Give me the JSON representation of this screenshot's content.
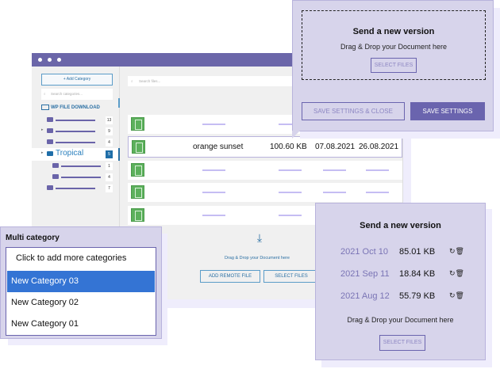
{
  "window": {
    "sidebar": {
      "add_category": "+ Add Category",
      "search_placeholder": "Search categories...",
      "brand": "WP FILE DOWNLOAD",
      "tree": [
        {
          "count": "13"
        },
        {
          "count": "9"
        },
        {
          "count": "4"
        },
        {
          "label": "Tropical",
          "count": "5"
        },
        {
          "count": "1"
        },
        {
          "count": "4"
        },
        {
          "count": "7"
        }
      ]
    },
    "main": {
      "search_placeholder": "Search files...",
      "headers": {
        "ext": "EXT",
        "title": "TITLE",
        "size": "FILE SIZE"
      },
      "selected_row": {
        "title": "orange sunset",
        "size": "100.60 KB",
        "date_added": "07.08.2021",
        "date_modified": "26.08.2021"
      },
      "drop_text": "Drag & Drop your Document here",
      "add_remote": "ADD REMOTE FILE",
      "select_files": "SELECT FILES"
    }
  },
  "top_popup": {
    "title": "Send a new version",
    "drop_text": "Drag & Drop your Document here",
    "select_files": "SELECT FILES",
    "save_close": "SAVE SETTINGS & CLOSE",
    "save": "SAVE SETTINGS"
  },
  "version_popup": {
    "title": "Send a new version",
    "versions": [
      {
        "date": "2021 Oct 10",
        "size": "85.01 KB"
      },
      {
        "date": "2021 Sep 11",
        "size": "18.84 KB"
      },
      {
        "date": "2021 Aug 12",
        "size": "55.79 KB"
      }
    ],
    "drop_text": "Drag & Drop your Document here",
    "select_files": "SELECT FILES"
  },
  "multi_category": {
    "label": "Multi category",
    "placeholder": "Click to add more categories",
    "options": [
      "New Category 03",
      "New Category 02",
      "New Category 01"
    ],
    "selected": "New Category 03"
  },
  "colors": {
    "accent": "#6b66a9",
    "link": "#2a6fa3",
    "selected": "#3474d4",
    "file_icon": "#5cb05c"
  }
}
